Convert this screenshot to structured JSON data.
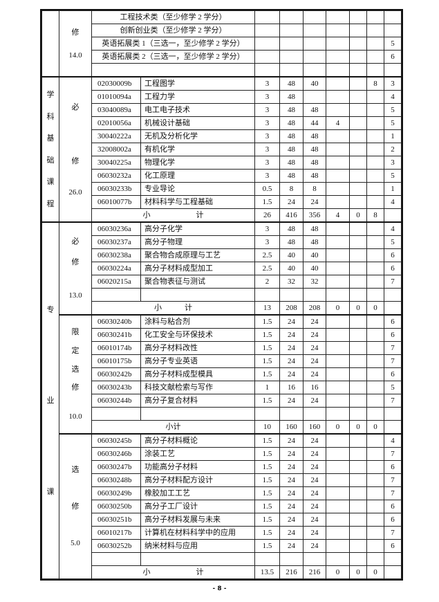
{
  "sections": [
    {
      "category_lines": [],
      "groups": [
        {
          "type_lines": [
            "",
            "修",
            "",
            "14.0",
            ""
          ],
          "rows": [
            {
              "title": "工程技术类（至少修学 2 学分）",
              "cells": [
                "",
                "",
                "",
                "",
                "",
                "",
                ""
              ]
            },
            {
              "title": "创新创业类（至少修学 2 学分）",
              "cells": [
                "",
                "",
                "",
                "",
                "",
                "",
                ""
              ]
            },
            {
              "title": "英语拓展类 1（三选一，至少修学 2 学分）",
              "cells": [
                "",
                "",
                "",
                "",
                "",
                "",
                "5"
              ]
            },
            {
              "title": "英语拓展类 2（三选一，至少修学 2 学分）",
              "cells": [
                "",
                "",
                "",
                "",
                "",
                "",
                "6"
              ]
            },
            {
              "title": "",
              "cells": [
                "",
                "",
                "",
                "",
                "",
                "",
                ""
              ]
            }
          ]
        }
      ]
    },
    {
      "category_lines": [
        "学",
        "科",
        "基",
        "础",
        "课",
        "程"
      ],
      "groups": [
        {
          "type_lines": [
            "必",
            "",
            "修",
            "26.0"
          ],
          "rows": [
            {
              "code": "02030009b",
              "name": "工程图学",
              "cells": [
                "3",
                "48",
                "40",
                "",
                "",
                "8",
                "3"
              ]
            },
            {
              "code": "01010094a",
              "name": "工程力学",
              "cells": [
                "3",
                "48",
                "",
                "",
                "",
                "",
                "4"
              ]
            },
            {
              "code": "03040089a",
              "name": "电工电子技术",
              "cells": [
                "3",
                "48",
                "48",
                "",
                "",
                "",
                "5"
              ]
            },
            {
              "code": "02010056a",
              "name": "机械设计基础",
              "cells": [
                "3",
                "48",
                "44",
                "4",
                "",
                "",
                "5"
              ]
            },
            {
              "code": "30040222a",
              "name": "无机及分析化学",
              "cells": [
                "3",
                "48",
                "48",
                "",
                "",
                "",
                "1"
              ]
            },
            {
              "code": "32008002a",
              "name": "有机化学",
              "cells": [
                "3",
                "48",
                "48",
                "",
                "",
                "",
                "2"
              ]
            },
            {
              "code": "30040225a",
              "name": "物理化学",
              "cells": [
                "3",
                "48",
                "48",
                "",
                "",
                "",
                "3"
              ]
            },
            {
              "code": "06030232a",
              "name": "化工原理",
              "cells": [
                "3",
                "48",
                "48",
                "",
                "",
                "",
                "5"
              ]
            },
            {
              "code": "06030233b",
              "name": "专业导论",
              "cells": [
                "0.5",
                "8",
                "8",
                "",
                "",
                "",
                "1"
              ]
            },
            {
              "code": "06010077b",
              "name": "材料科学与工程基础",
              "cells": [
                "1.5",
                "24",
                "24",
                "",
                "",
                "",
                "4"
              ]
            },
            {
              "subtotal": "小　　　　　　计",
              "cells": [
                "26",
                "416",
                "356",
                "4",
                "0",
                "8",
                ""
              ]
            }
          ]
        }
      ]
    },
    {
      "category_lines": [
        "专",
        "业",
        "课"
      ],
      "groups": [
        {
          "type_lines": [
            "必",
            "修",
            "",
            "13.0"
          ],
          "rows": [
            {
              "code": "06030236a",
              "name": "高分子化学",
              "cells": [
                "3",
                "48",
                "48",
                "",
                "",
                "",
                "4"
              ]
            },
            {
              "code": "06030237a",
              "name": "高分子物理",
              "cells": [
                "3",
                "48",
                "48",
                "",
                "",
                "",
                "5"
              ]
            },
            {
              "code": "06030238a",
              "name": "聚合物合成原理与工艺",
              "cells": [
                "2.5",
                "40",
                "40",
                "",
                "",
                "",
                "6"
              ]
            },
            {
              "code": "06030224a",
              "name": "高分子材料成型加工",
              "cells": [
                "2.5",
                "40",
                "40",
                "",
                "",
                "",
                "6"
              ]
            },
            {
              "code": "06020215a",
              "name": "聚合物表征与测试",
              "cells": [
                "2",
                "32",
                "32",
                "",
                "",
                "",
                "7"
              ]
            },
            {
              "code": "",
              "name": "",
              "cells": [
                "",
                "",
                "",
                "",
                "",
                "",
                ""
              ]
            },
            {
              "subtotal": "小　　　计",
              "cells": [
                "13",
                "208",
                "208",
                "0",
                "0",
                "0",
                ""
              ]
            }
          ]
        },
        {
          "type_lines": [
            "限",
            "定",
            "选",
            "修",
            "",
            "10.0"
          ],
          "rows": [
            {
              "code": "06030240b",
              "name": "涂料与粘合剂",
              "cells": [
                "1.5",
                "24",
                "24",
                "",
                "",
                "",
                "6"
              ]
            },
            {
              "code": "06030241b",
              "name": "化工安全与环保技术",
              "cells": [
                "1.5",
                "24",
                "24",
                "",
                "",
                "",
                "6"
              ]
            },
            {
              "code": "06010174b",
              "name": "高分子材料改性",
              "cells": [
                "1.5",
                "24",
                "24",
                "",
                "",
                "",
                "7"
              ]
            },
            {
              "code": "06010175b",
              "name": "高分子专业英语",
              "cells": [
                "1.5",
                "24",
                "24",
                "",
                "",
                "",
                "7"
              ]
            },
            {
              "code": "06030242b",
              "name": "高分子材料成型模具",
              "cells": [
                "1.5",
                "24",
                "24",
                "",
                "",
                "",
                "6"
              ]
            },
            {
              "code": "06030243b",
              "name": "科技文献检索与写作",
              "cells": [
                "1",
                "16",
                "16",
                "",
                "",
                "",
                "5"
              ]
            },
            {
              "code": "06030244b",
              "name": "高分子复合材料",
              "cells": [
                "1.5",
                "24",
                "24",
                "",
                "",
                "",
                "7"
              ]
            },
            {
              "code": "",
              "name": "",
              "cells": [
                "",
                "",
                "",
                "",
                "",
                "",
                ""
              ]
            },
            {
              "subtotal": "小计",
              "cells": [
                "10",
                "160",
                "160",
                "0",
                "0",
                "0",
                ""
              ]
            }
          ]
        },
        {
          "type_lines": [
            "选",
            "修",
            "5.0"
          ],
          "rows": [
            {
              "code": "06030245b",
              "name": "高分子材料概论",
              "cells": [
                "1.5",
                "24",
                "24",
                "",
                "",
                "",
                "4"
              ]
            },
            {
              "code": "06030246b",
              "name": "涂装工艺",
              "cells": [
                "1.5",
                "24",
                "24",
                "",
                "",
                "",
                "7"
              ]
            },
            {
              "code": "06030247b",
              "name": "功能高分子材料",
              "cells": [
                "1.5",
                "24",
                "24",
                "",
                "",
                "",
                "6"
              ]
            },
            {
              "code": "06030248b",
              "name": "高分子材料配方设计",
              "cells": [
                "1.5",
                "24",
                "24",
                "",
                "",
                "",
                "7"
              ]
            },
            {
              "code": "06030249b",
              "name": "橡胶加工工艺",
              "cells": [
                "1.5",
                "24",
                "24",
                "",
                "",
                "",
                "7"
              ]
            },
            {
              "code": "06030250b",
              "name": "高分子工厂设计",
              "cells": [
                "1.5",
                "24",
                "24",
                "",
                "",
                "",
                "6"
              ]
            },
            {
              "code": "06030251b",
              "name": "高分子材料发展与未来",
              "cells": [
                "1.5",
                "24",
                "24",
                "",
                "",
                "",
                "6"
              ]
            },
            {
              "code": "06010217b",
              "name": "计算机在材料科学中的应用",
              "cells": [
                "1.5",
                "24",
                "24",
                "",
                "",
                "",
                "7"
              ]
            },
            {
              "code": "06030252b",
              "name": "纳米材料与应用",
              "cells": [
                "1.5",
                "24",
                "24",
                "",
                "",
                "",
                "6"
              ]
            },
            {
              "code": "",
              "name": "",
              "cells": [
                "",
                "",
                "",
                "",
                "",
                "",
                ""
              ]
            },
            {
              "subtotal": "小　　　　　　计",
              "cells": [
                "13.5",
                "216",
                "216",
                "0",
                "0",
                "0",
                ""
              ]
            }
          ]
        }
      ]
    }
  ],
  "page_number": "- 8 -"
}
